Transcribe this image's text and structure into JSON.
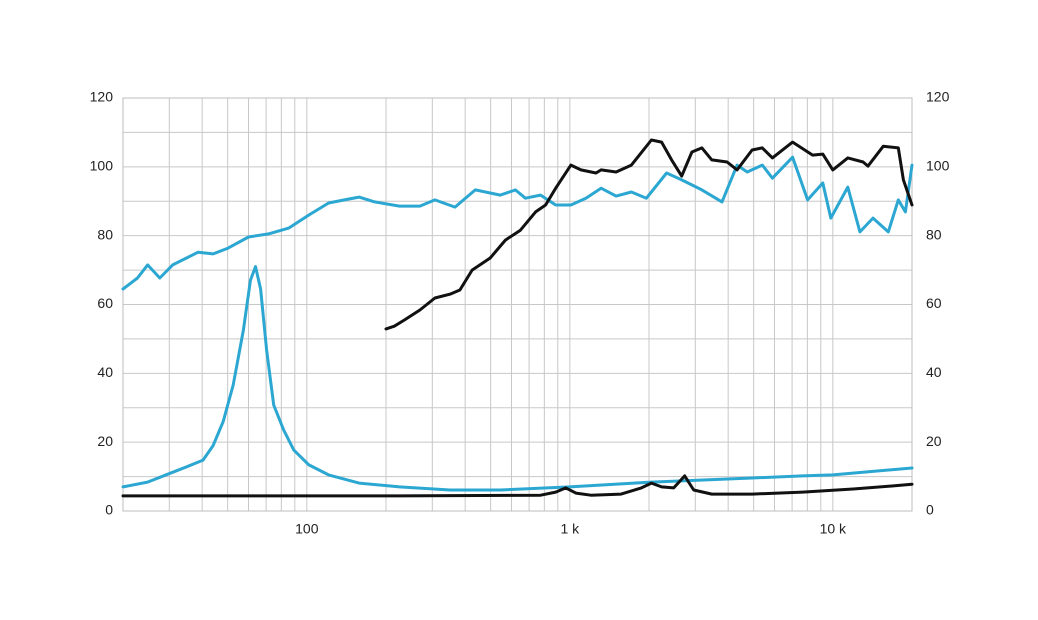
{
  "chart_data": {
    "type": "line",
    "xscale": "log",
    "xlim": [
      20,
      20000
    ],
    "xticks": [
      100,
      {
        "value": 1000,
        "label": "1 k"
      },
      {
        "value": 10000,
        "label": "10 k"
      }
    ],
    "xminor": [
      30,
      40,
      50,
      60,
      70,
      80,
      90,
      200,
      300,
      400,
      500,
      600,
      700,
      800,
      900,
      2000,
      3000,
      4000,
      5000,
      6000,
      7000,
      8000,
      9000
    ],
    "ylim": [
      0,
      120
    ],
    "yticks": [
      0,
      20,
      40,
      60,
      80,
      100,
      120
    ],
    "y2lim": [
      0,
      120
    ],
    "y2ticks": [
      0,
      20,
      40,
      60,
      80,
      100,
      120
    ],
    "yminor": [
      10,
      30,
      50,
      70,
      90,
      110
    ],
    "grid": true,
    "grid_color": "#c8c8c8",
    "series": [
      {
        "color": "#2ba7d2",
        "x": [
          20,
          22.7,
          24.8,
          27.6,
          30.9,
          38.6,
          44,
          50.2,
          60,
          71.5,
          85.3,
          101.8,
          121,
          139,
          158,
          181,
          225,
          269,
          307,
          366,
          437,
          544,
          621,
          678,
          774,
          884,
          1009,
          1151,
          1315,
          1500,
          1714,
          1955,
          2333,
          2663,
          3177,
          3790,
          4325,
          4724,
          5395,
          5890,
          7030,
          8020,
          9160,
          9820,
          11400,
          12680,
          14220,
          16250,
          17740,
          18880,
          20000
        ],
        "values": [
          64.5,
          67.7,
          71.5,
          67.7,
          71.5,
          75.2,
          74.7,
          76.4,
          79.6,
          80.5,
          82.2,
          86,
          89.5,
          90.4,
          91.2,
          89.8,
          88.6,
          88.6,
          90.4,
          88.3,
          93.3,
          91.8,
          93.3,
          90.9,
          91.8,
          88.9,
          88.9,
          90.9,
          93.8,
          91.5,
          92.7,
          90.9,
          98.2,
          96.2,
          93.3,
          89.8,
          100.5,
          98.5,
          100.5,
          96.7,
          102.8,
          90.4,
          95.3,
          85.1,
          94.1,
          81.1,
          85.1,
          81.1,
          90.4,
          86.9,
          100.5
        ]
      },
      {
        "color": "#2ba7d2",
        "x": [
          20,
          24.8,
          29.6,
          35.3,
          40.3,
          44,
          48.1,
          52.5,
          57.4,
          61,
          63.8,
          66.7,
          70.3,
          74.8,
          81.7,
          89.2,
          101.8,
          121,
          158,
          225,
          350,
          544,
          1000,
          2043,
          4932,
          7675,
          10000,
          20000
        ],
        "values": [
          7,
          8.4,
          10.7,
          13,
          14.8,
          19,
          26,
          36.6,
          52.6,
          67,
          71,
          64.5,
          46.8,
          30.8,
          23.5,
          17.7,
          13.4,
          10.5,
          8.1,
          7,
          6.1,
          6.1,
          7,
          8.4,
          9.6,
          10.2,
          10.5,
          12.5
        ]
      },
      {
        "color": "#111111",
        "x": [
          200,
          215,
          235,
          269,
          307,
          350,
          382,
          425,
          498,
          569,
          649,
          741,
          809,
          884,
          1009,
          1102,
          1258,
          1315,
          1500,
          1714,
          2043,
          2234,
          2438,
          2663,
          2911,
          3177,
          3467,
          3961,
          4325,
          4932,
          5395,
          5890,
          7030,
          8375,
          9160,
          10000,
          11400,
          13030,
          13610,
          15560,
          17740,
          18550,
          20000
        ],
        "values": [
          52.9,
          53.7,
          55.5,
          58.4,
          61.9,
          63,
          64.2,
          70,
          73.5,
          78.7,
          81.6,
          86.9,
          88.9,
          93.8,
          100.5,
          99.1,
          98.2,
          99.1,
          98.5,
          100.5,
          107.8,
          107.2,
          102,
          97.3,
          104.3,
          105.5,
          102,
          101.4,
          99.1,
          104.9,
          105.5,
          102.6,
          107.2,
          103.4,
          103.7,
          99.1,
          102.6,
          101.4,
          100.2,
          106,
          105.5,
          96.2,
          88.9
        ]
      },
      {
        "color": "#111111",
        "x": [
          20,
          225,
          774,
          884,
          965,
          1055,
          1203,
          1567,
          1872,
          2043,
          2234,
          2483,
          2734,
          2958,
          3467,
          4932,
          7675,
          11940,
          16980,
          20000
        ],
        "values": [
          4.4,
          4.4,
          4.6,
          5.5,
          6.7,
          5.2,
          4.6,
          4.9,
          6.7,
          8.1,
          7,
          6.7,
          10.2,
          6.1,
          4.9,
          4.9,
          5.5,
          6.4,
          7.3,
          7.8
        ]
      }
    ]
  }
}
